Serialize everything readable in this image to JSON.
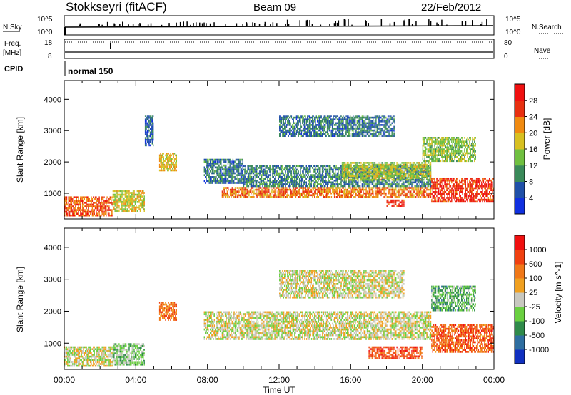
{
  "header": {
    "station": "Stokkseyri (fitACF)",
    "beam": "Beam 09",
    "date": "22/Feb/2012"
  },
  "panels": {
    "nsky_label": "N.Sky",
    "nsearch_label": "N.Search",
    "freq_label_1": "Freq.",
    "freq_label_2": "[MHz]",
    "nave_label": "Nave",
    "cpid_label": "CPID",
    "cpid_value": "normal 150",
    "nsky_ticks": [
      "10^5",
      "10^0"
    ],
    "nsearch_ticks": [
      "10^5",
      "10^0"
    ],
    "freq_ticks": [
      "18",
      "8"
    ],
    "nave_ticks": [
      "80",
      "0"
    ]
  },
  "chart_data": [
    {
      "type": "heatmap",
      "panel": "power",
      "ylabel": "Slant Range [km]",
      "xlabel": "",
      "x_ticks": [
        "00:00",
        "04:00",
        "08:00",
        "12:00",
        "16:00",
        "20:00",
        "00:00"
      ],
      "x_range_hours": [
        0,
        24
      ],
      "ylim": [
        180,
        4600
      ],
      "y_ticks": [
        1000,
        2000,
        3000,
        4000
      ],
      "colorbar": {
        "label": "Power [dB]",
        "range": [
          0,
          32
        ],
        "ticks": [
          "4",
          "8",
          "12",
          "16",
          "20",
          "24",
          "28"
        ],
        "colors": [
          "#1030e0",
          "#2050a8",
          "#3a8a5a",
          "#70c040",
          "#d8c020",
          "#f08a10",
          "#e83010",
          "#f01010"
        ]
      },
      "bands": [
        {
          "t0": 0.0,
          "t1": 2.7,
          "r0": 260,
          "r1": 900,
          "level": 0.78
        },
        {
          "t0": 2.7,
          "t1": 4.5,
          "r0": 400,
          "r1": 1100,
          "level": 0.55
        },
        {
          "t0": 5.3,
          "t1": 6.3,
          "r0": 1700,
          "r1": 2300,
          "level": 0.6
        },
        {
          "t0": 7.8,
          "t1": 10.0,
          "r0": 1300,
          "r1": 2100,
          "level": 0.25
        },
        {
          "t0": 8.8,
          "t1": 20.5,
          "r0": 850,
          "r1": 1200,
          "level": 0.72
        },
        {
          "t0": 10.0,
          "t1": 20.5,
          "r0": 1200,
          "r1": 1900,
          "level": 0.28
        },
        {
          "t0": 15.5,
          "t1": 20.5,
          "r0": 1400,
          "r1": 2000,
          "level": 0.5
        },
        {
          "t0": 18.0,
          "t1": 19.0,
          "r0": 550,
          "r1": 800,
          "level": 0.85
        },
        {
          "t0": 20.5,
          "t1": 24.0,
          "r0": 700,
          "r1": 1500,
          "level": 0.85
        },
        {
          "t0": 20.0,
          "t1": 23.0,
          "r0": 2000,
          "r1": 2800,
          "level": 0.45
        },
        {
          "t0": 4.5,
          "t1": 5.0,
          "r0": 2500,
          "r1": 3500,
          "level": 0.2
        },
        {
          "t0": 12.0,
          "t1": 18.5,
          "r0": 2800,
          "r1": 3500,
          "level": 0.25
        }
      ]
    },
    {
      "type": "heatmap",
      "panel": "velocity",
      "ylabel": "Slant Range [km]",
      "xlabel": "Time UT",
      "x_ticks": [
        "00:00",
        "04:00",
        "08:00",
        "12:00",
        "16:00",
        "20:00",
        "00:00"
      ],
      "x_range_hours": [
        0,
        24
      ],
      "ylim": [
        180,
        4600
      ],
      "y_ticks": [
        1000,
        2000,
        3000,
        4000
      ],
      "colorbar": {
        "label": "Velocity [m s^-1]",
        "range": [
          -1250,
          1250
        ],
        "ticks": [
          "1000",
          "500",
          "100",
          "25",
          "-25",
          "-100",
          "-500",
          "-1000"
        ],
        "colors": [
          "#1030c0",
          "#2e6ea0",
          "#2f8a4a",
          "#6ad040",
          "#c8c8c0",
          "#f0a020",
          "#f07818",
          "#f04010",
          "#f01010"
        ]
      },
      "bands": [
        {
          "t0": 0.0,
          "t1": 2.7,
          "r0": 260,
          "r1": 900,
          "level": 0.5
        },
        {
          "t0": 2.7,
          "t1": 4.5,
          "r0": 300,
          "r1": 1000,
          "level": 0.4
        },
        {
          "t0": 5.3,
          "t1": 6.3,
          "r0": 1700,
          "r1": 2300,
          "level": 0.75
        },
        {
          "t0": 7.8,
          "t1": 20.5,
          "r0": 1100,
          "r1": 2000,
          "level": 0.5
        },
        {
          "t0": 12.0,
          "t1": 19.0,
          "r0": 2400,
          "r1": 3300,
          "level": 0.5
        },
        {
          "t0": 17.0,
          "t1": 20.0,
          "r0": 500,
          "r1": 900,
          "level": 0.82
        },
        {
          "t0": 20.5,
          "t1": 24.0,
          "r0": 700,
          "r1": 1600,
          "level": 0.78
        },
        {
          "t0": 20.5,
          "t1": 23.0,
          "r0": 2000,
          "r1": 2800,
          "level": 0.35
        }
      ]
    }
  ]
}
